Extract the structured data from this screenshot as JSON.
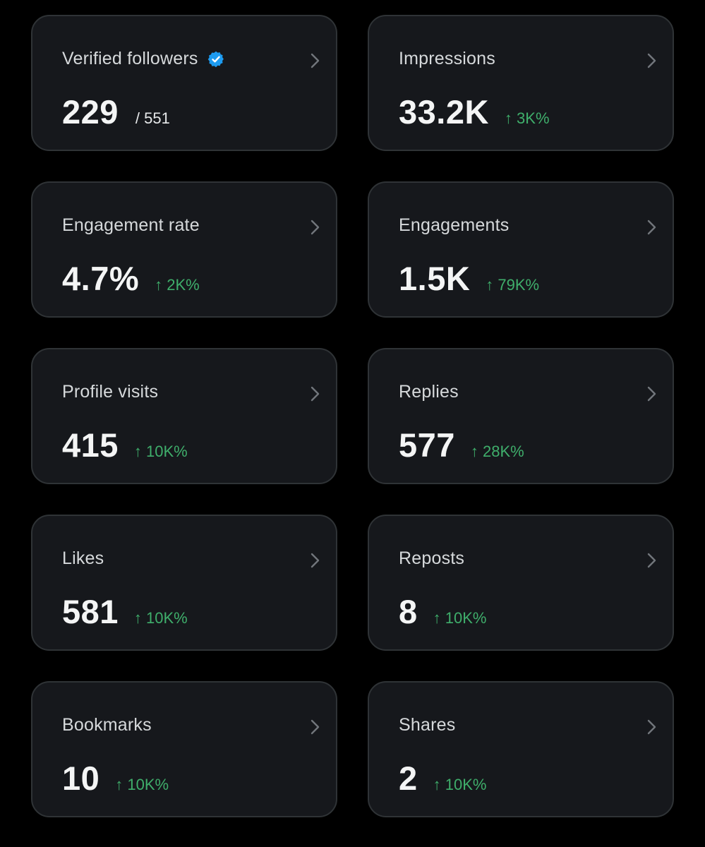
{
  "theme": {
    "background": "#000000",
    "card_background": "#16181c",
    "card_border": "#2f3336",
    "verified_color": "#1d9bf0",
    "positive_color": "#3fae6b"
  },
  "cards": [
    {
      "label": "Verified followers",
      "value": "229",
      "total": "/ 551",
      "change": "",
      "verified": true,
      "icon": "verified-badge-icon"
    },
    {
      "label": "Impressions",
      "value": "33.2K",
      "total": "",
      "change": "↑ 3K%"
    },
    {
      "label": "Engagement rate",
      "value": "4.7%",
      "total": "",
      "change": "↑ 2K%"
    },
    {
      "label": "Engagements",
      "value": "1.5K",
      "total": "",
      "change": "↑ 79K%"
    },
    {
      "label": "Profile visits",
      "value": "415",
      "total": "",
      "change": "↑ 10K%"
    },
    {
      "label": "Replies",
      "value": "577",
      "total": "",
      "change": "↑ 28K%"
    },
    {
      "label": "Likes",
      "value": "581",
      "total": "",
      "change": "↑ 10K%"
    },
    {
      "label": "Reposts",
      "value": "8",
      "total": "",
      "change": "↑ 10K%"
    },
    {
      "label": "Bookmarks",
      "value": "10",
      "total": "",
      "change": "↑ 10K%"
    },
    {
      "label": "Shares",
      "value": "2",
      "total": "",
      "change": "↑ 10K%"
    }
  ]
}
